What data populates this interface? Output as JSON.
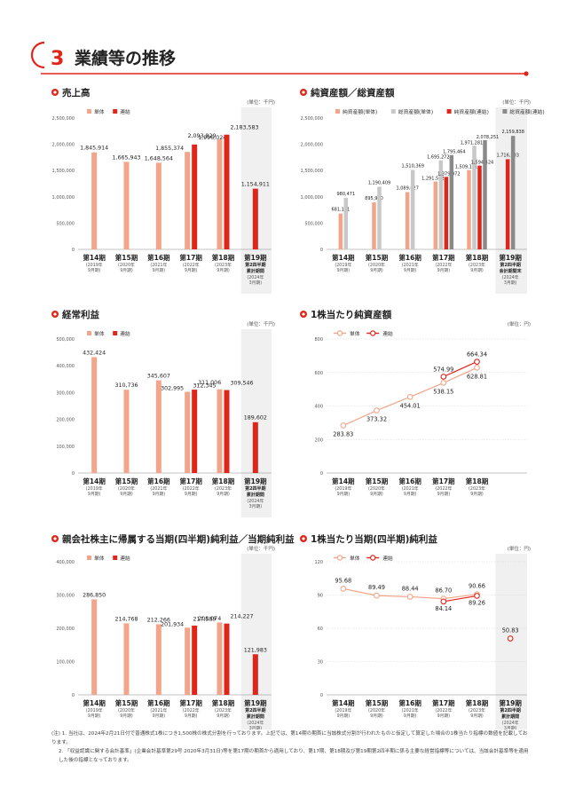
{
  "section": {
    "number": "3",
    "title": "業績等の推移"
  },
  "colors": {
    "tan": "#f2a58a",
    "tan_dark": "#e34a3a",
    "red": "#e0261b",
    "grey": "#c8c8c8",
    "grey_dark": "#8a8a8a",
    "band": "#f0f0f0"
  },
  "common_axis": [
    {
      "label": "第14期",
      "sub1": "(2019年",
      "sub2": "9月期)"
    },
    {
      "label": "第15期",
      "sub1": "(2020年",
      "sub2": "9月期)"
    },
    {
      "label": "第16期",
      "sub1": "(2021年",
      "sub2": "9月期)"
    },
    {
      "label": "第17期",
      "sub1": "(2022年",
      "sub2": "9月期)"
    },
    {
      "label": "第18期",
      "sub1": "(2023年",
      "sub2": "9月期)"
    }
  ],
  "charts": [
    {
      "id": "sales",
      "type": "bar",
      "title": "売上高",
      "unit": "(単位：千円)",
      "legend": [
        "単体",
        "連結"
      ],
      "yticks": [
        "2,500,000",
        "2,000,000",
        "1,500,000",
        "1,000,000",
        "500,000",
        "0"
      ],
      "ymax": 2500000,
      "series": [
        {
          "name": "単体",
          "values": [
            1845914,
            1665943,
            1648564,
            1855374,
            2093829,
            null
          ]
        },
        {
          "name": "連結",
          "values": [
            null,
            null,
            null,
            1996024,
            2183583,
            1154911
          ]
        }
      ],
      "value_labels": [
        [
          "1,845,914",
          null
        ],
        [
          "1,665,943",
          null
        ],
        [
          "1,648,564",
          null
        ],
        [
          "1,855,374",
          "1,996,024"
        ],
        [
          "2,093,829",
          "2,183,583"
        ],
        [
          null,
          "1,154,911"
        ]
      ],
      "last": {
        "label": "第19期",
        "sub1": "第2四半期",
        "sub2": "累計期間",
        "sub3": "(2024年",
        "sub4": "3月期)"
      }
    },
    {
      "id": "assets",
      "type": "bar",
      "title": "純資産額／総資産額",
      "unit": "(単位：千円)",
      "legend": [
        "純資産額(単体)",
        "総資産額(単体)",
        "純資産額(連結)",
        "総資産額(連結)"
      ],
      "yticks": [
        "2,500,000",
        "2,000,000",
        "1,500,000",
        "1,000,000",
        "500,000",
        "0"
      ],
      "ymax": 2500000,
      "series": [
        {
          "name": "純資産額(単体)",
          "values": [
            681191,
            895960,
            1089627,
            1291562,
            1509151,
            null
          ]
        },
        {
          "name": "総資産額(単体)",
          "values": [
            980471,
            1190409,
            1510369,
            1695272,
            1971281,
            null
          ]
        },
        {
          "name": "純資産額(連結)",
          "values": [
            null,
            null,
            null,
            1379972,
            1594424,
            1716503
          ]
        },
        {
          "name": "総資産額(連結)",
          "values": [
            null,
            null,
            null,
            1795464,
            2078251,
            2159838
          ]
        }
      ],
      "value_labels": [
        [
          "681,191",
          "980,471",
          null,
          null
        ],
        [
          "895,960",
          "1,190,409",
          null,
          null
        ],
        [
          "1,089,627",
          "1,510,369",
          null,
          null
        ],
        [
          "1,291,562",
          "1,695,272",
          "1,379,972",
          "1,795,464"
        ],
        [
          "1,509,151",
          "1,971,281",
          "1,594,424",
          "2,078,251"
        ],
        [
          null,
          null,
          "1,716,503",
          "2,159,838"
        ]
      ],
      "last": {
        "label": "第19期",
        "sub1": "第2四半期",
        "sub2": "会計期間末",
        "sub3": "(2024年",
        "sub4": "3月期)"
      }
    },
    {
      "id": "ordinary",
      "type": "bar",
      "title": "経常利益",
      "unit": "(単位：千円)",
      "legend": [
        "単体",
        "連結"
      ],
      "yticks": [
        "500,000",
        "400,000",
        "300,000",
        "200,000",
        "100,000",
        "0"
      ],
      "ymax": 500000,
      "series": [
        {
          "name": "単体",
          "values": [
            432424,
            310736,
            345607,
            302995,
            312345,
            null
          ]
        },
        {
          "name": "連結",
          "values": [
            null,
            null,
            null,
            311006,
            309546,
            189602
          ]
        }
      ],
      "value_labels": [
        [
          "432,424",
          null
        ],
        [
          "310,736",
          null
        ],
        [
          "345,607",
          null
        ],
        [
          "302,995",
          "311,006"
        ],
        [
          "312,345",
          "309,546"
        ],
        [
          null,
          "189,602"
        ]
      ],
      "last": {
        "label": "第19期",
        "sub1": "第2四半期",
        "sub2": "累計期間",
        "sub3": "(2024年",
        "sub4": "3月期)"
      }
    },
    {
      "id": "bps",
      "type": "line",
      "title": "1株当たり純資産額",
      "unit": "(単位：円)",
      "legend": [
        "単体",
        "連結"
      ],
      "yticks": [
        "800",
        "600",
        "400",
        "200",
        "0"
      ],
      "ymax": 800,
      "series": [
        {
          "name": "単体",
          "values": [
            283.83,
            373.32,
            454.01,
            538.15,
            628.81
          ]
        },
        {
          "name": "連結",
          "values": [
            null,
            null,
            null,
            574.99,
            664.34
          ]
        }
      ],
      "value_labels": [
        [
          "283.83",
          null
        ],
        [
          "373.32",
          null
        ],
        [
          "454.01",
          null
        ],
        [
          "538.15",
          "574.99"
        ],
        [
          "628.81",
          "664.34"
        ]
      ]
    },
    {
      "id": "netincome",
      "type": "bar",
      "title": "親会社株主に帰属する当期(四半期)純利益／当期純利益",
      "unit": "(単位：千円)",
      "legend": [
        "単体",
        "連結"
      ],
      "yticks": [
        "400,000",
        "300,000",
        "200,000",
        "100,000",
        "0"
      ],
      "ymax": 400000,
      "series": [
        {
          "name": "単体",
          "values": [
            286850,
            214768,
            212266,
            201934,
            217589,
            null
          ]
        },
        {
          "name": "連結",
          "values": [
            null,
            null,
            null,
            208074,
            214227,
            121983
          ]
        }
      ],
      "value_labels": [
        [
          "286,850",
          null
        ],
        [
          "214,768",
          null
        ],
        [
          "212,266",
          null
        ],
        [
          "201,934",
          "208,074"
        ],
        [
          "217,589",
          "214,227"
        ],
        [
          null,
          "121,983"
        ]
      ],
      "last": {
        "label": "第19期",
        "sub1": "第2四半期",
        "sub2": "累計期間",
        "sub3": "(2024年",
        "sub4": "3月期)"
      }
    },
    {
      "id": "eps",
      "type": "line",
      "title": "1株当たり当期(四半期)純利益",
      "unit": "(単位：円)",
      "legend": [
        "単体",
        "連結"
      ],
      "yticks": [
        "120",
        "90",
        "60",
        "30",
        "0"
      ],
      "ymax": 120,
      "series": [
        {
          "name": "単体",
          "values": [
            95.68,
            89.49,
            88.44,
            86.7,
            90.66,
            null
          ]
        },
        {
          "name": "連結",
          "values": [
            null,
            null,
            null,
            84.14,
            89.26,
            50.83
          ]
        }
      ],
      "value_labels": [
        [
          "95.68",
          null
        ],
        [
          "89.49",
          null
        ],
        [
          "88.44",
          null
        ],
        [
          "86.70",
          "84.14"
        ],
        [
          "90.66",
          "89.26"
        ],
        [
          null,
          "50.83"
        ]
      ],
      "last": {
        "label": "第19期",
        "sub1": "第2四半期",
        "sub2": "累計期間",
        "sub3": "(2024年",
        "sub4": "3月期)"
      }
    }
  ],
  "chart_data": [
    {
      "type": "bar",
      "title": "売上高",
      "categories": [
        "第14期",
        "第15期",
        "第16期",
        "第17期",
        "第18期",
        "第19期"
      ],
      "series": [
        {
          "name": "単体",
          "values": [
            1845914,
            1665943,
            1648564,
            1855374,
            2093829,
            null
          ]
        },
        {
          "name": "連結",
          "values": [
            null,
            null,
            null,
            1996024,
            2183583,
            1154911
          ]
        }
      ],
      "ylim": [
        0,
        2500000
      ]
    },
    {
      "type": "bar",
      "title": "純資産額／総資産額",
      "categories": [
        "第14期",
        "第15期",
        "第16期",
        "第17期",
        "第18期",
        "第19期"
      ],
      "series": [
        {
          "name": "純資産額(単体)",
          "values": [
            681191,
            895960,
            1089627,
            1291562,
            1509151,
            null
          ]
        },
        {
          "name": "総資産額(単体)",
          "values": [
            980471,
            1190409,
            1510369,
            1695272,
            1971281,
            null
          ]
        },
        {
          "name": "純資産額(連結)",
          "values": [
            null,
            null,
            null,
            1379972,
            1594424,
            1716503
          ]
        },
        {
          "name": "総資産額(連結)",
          "values": [
            null,
            null,
            null,
            1795464,
            2078251,
            2159838
          ]
        }
      ],
      "ylim": [
        0,
        2500000
      ]
    },
    {
      "type": "bar",
      "title": "経常利益",
      "categories": [
        "第14期",
        "第15期",
        "第16期",
        "第17期",
        "第18期",
        "第19期"
      ],
      "series": [
        {
          "name": "単体",
          "values": [
            432424,
            310736,
            345607,
            302995,
            312345,
            null
          ]
        },
        {
          "name": "連結",
          "values": [
            null,
            null,
            null,
            311006,
            309546,
            189602
          ]
        }
      ],
      "ylim": [
        0,
        500000
      ]
    },
    {
      "type": "line",
      "title": "1株当たり純資産額",
      "categories": [
        "第14期",
        "第15期",
        "第16期",
        "第17期",
        "第18期"
      ],
      "series": [
        {
          "name": "単体",
          "values": [
            283.83,
            373.32,
            454.01,
            538.15,
            628.81
          ]
        },
        {
          "name": "連結",
          "values": [
            null,
            null,
            null,
            574.99,
            664.34
          ]
        }
      ],
      "ylim": [
        0,
        800
      ]
    },
    {
      "type": "bar",
      "title": "親会社株主に帰属する当期(四半期)純利益／当期純利益",
      "categories": [
        "第14期",
        "第15期",
        "第16期",
        "第17期",
        "第18期",
        "第19期"
      ],
      "series": [
        {
          "name": "単体",
          "values": [
            286850,
            214768,
            212266,
            201934,
            217589,
            null
          ]
        },
        {
          "name": "連結",
          "values": [
            null,
            null,
            null,
            208074,
            214227,
            121983
          ]
        }
      ],
      "ylim": [
        0,
        400000
      ]
    },
    {
      "type": "line",
      "title": "1株当たり当期(四半期)純利益",
      "categories": [
        "第14期",
        "第15期",
        "第16期",
        "第17期",
        "第18期",
        "第19期"
      ],
      "series": [
        {
          "name": "単体",
          "values": [
            95.68,
            89.49,
            88.44,
            86.7,
            90.66,
            null
          ]
        },
        {
          "name": "連結",
          "values": [
            null,
            null,
            null,
            84.14,
            89.26,
            50.83
          ]
        }
      ],
      "ylim": [
        0,
        120
      ]
    }
  ],
  "footnotes": [
    "(注) 1. 当社は、2024年2月21日付で普通株式1株につき1,500株の株式分割を行っております。上記では、第14期の期首に当該株式分割が行われたものと仮定して算定した場合の1株当たり指標の数値を記載しております。",
    "2. 「収益認識に関する会計基準」(企業会計基準第29号 2020年3月31日)等を第17期の期首から適用しており、第17期、第18期及び第19期第2四半期に係る主要な経営指標等については、当該会計基準等を適用した後の指標となっております。"
  ]
}
